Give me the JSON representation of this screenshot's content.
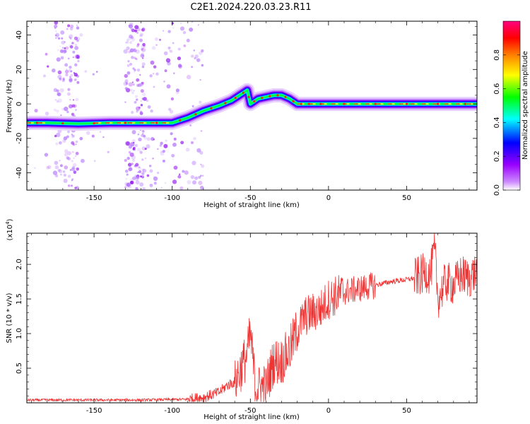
{
  "title": "C2E1.2024.220.03.23.R11",
  "chart_data": [
    {
      "type": "heatmap",
      "xlabel": "Height of straight line (km)",
      "ylabel": "Frequency (Hz)",
      "xlim": [
        -193,
        95
      ],
      "ylim": [
        -50,
        48
      ],
      "xticks": [
        -150,
        -100,
        -50,
        0,
        50
      ],
      "yticks": [
        -40,
        -20,
        0,
        20,
        40
      ],
      "ridge_x": [
        -193,
        -180,
        -160,
        -140,
        -120,
        -100,
        -90,
        -80,
        -70,
        -62,
        -57,
        -52,
        -50,
        -45,
        -40,
        -35,
        -30,
        -25,
        -20,
        -15,
        -10,
        0,
        20,
        40,
        60,
        80,
        95
      ],
      "ridge_y": [
        -11,
        -11,
        -11.5,
        -11,
        -11,
        -11,
        -8,
        -4,
        -1,
        2,
        5,
        8,
        0,
        3,
        4,
        5,
        5,
        3,
        0,
        0,
        0,
        0,
        0,
        0,
        0,
        0,
        0
      ],
      "colorbar": {
        "label": "Normalized spectral amplitude",
        "ticks": [
          "0.0",
          "0.2",
          "0.4",
          "0.6",
          "0.8"
        ],
        "range": [
          0,
          1
        ],
        "colormap": [
          "#ffffff",
          "#9900ff",
          "#0000ff",
          "#00ffff",
          "#00ff00",
          "#ffff00",
          "#ff8000",
          "#ff0000",
          "#ff0080"
        ]
      }
    },
    {
      "type": "line",
      "xlabel": "Height of straight line (km)",
      "ylabel": "SNR (10 * v/v)",
      "scale_label": "(x10",
      "scale_exp": "4",
      "scale_close": ")",
      "xlim": [
        -193,
        95
      ],
      "ylim": [
        0,
        2.45
      ],
      "xticks": [
        -150,
        -100,
        -50,
        0,
        50
      ],
      "yticks": [
        0.5,
        1.0,
        1.5,
        2.0
      ],
      "ytick_labels": [
        "0.5",
        "1.0",
        "1.5",
        "2.0"
      ],
      "color": "#ee3333",
      "x": [
        -193,
        -120,
        -90,
        -80,
        -70,
        -65,
        -60,
        -55,
        -52,
        -50,
        -47,
        -45,
        -40,
        -35,
        -30,
        -25,
        -20,
        -15,
        -10,
        -5,
        0,
        10,
        20,
        30,
        40,
        50,
        55,
        60,
        62,
        65,
        68,
        70,
        75,
        80,
        85,
        90,
        95
      ],
      "y": [
        0.04,
        0.04,
        0.05,
        0.08,
        0.15,
        0.25,
        0.3,
        0.55,
        0.7,
        1.0,
        0.3,
        0.2,
        0.25,
        0.6,
        0.6,
        0.75,
        1.05,
        1.25,
        1.3,
        1.35,
        1.5,
        1.6,
        1.65,
        1.7,
        1.75,
        1.78,
        1.8,
        1.85,
        1.9,
        1.85,
        2.2,
        1.5,
        1.75,
        1.7,
        1.85,
        1.8,
        1.9
      ]
    }
  ]
}
